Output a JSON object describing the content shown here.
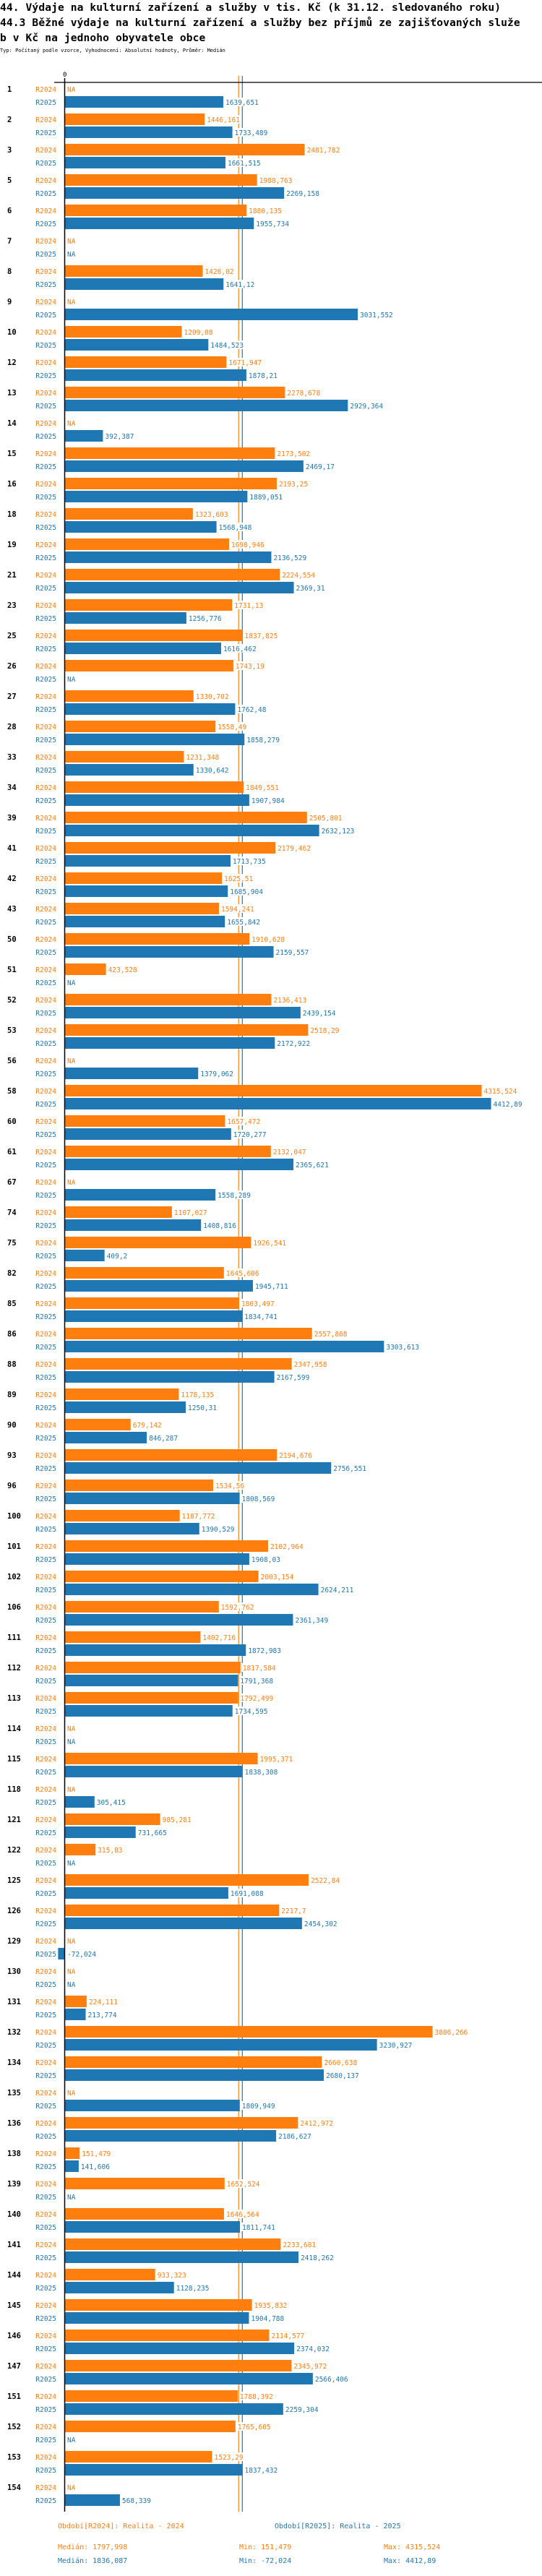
{
  "header": {
    "title_line1": "44. Výdaje na kulturní zařízení a služby v tis. Kč (k 31.12. sledovaného roku)",
    "title_line2": "44.3 Běžné výdaje na kulturní zařízení a služby bez příjmů ze zajišťovaných služe",
    "title_line3": "b v Kč na jednoho obyvatele obce",
    "subtitle": "Typ: Počítaný podle vzorce, Vyhodnocení: Absolutní hodnoty, Průměr: Medián"
  },
  "colors": {
    "R2024": "#ff7f0e",
    "R2025": "#1f77b4",
    "axis": "#000000"
  },
  "chart_data": {
    "type": "bar",
    "orientation": "horizontal",
    "title": "44.3 Běžné výdaje na kulturní zařízení a služby bez příjmů ze zajišťovaných služeb v Kč na jednoho obyvatele obce",
    "xlabel": "",
    "ylabel": "",
    "x_tick_labels": [
      "0"
    ],
    "xlim": [
      -100,
      4412.89
    ],
    "grid": false,
    "legend_position": "bottom",
    "na_label": "NA",
    "categories": [
      "1",
      "2",
      "3",
      "5",
      "6",
      "7",
      "8",
      "9",
      "10",
      "12",
      "13",
      "14",
      "15",
      "16",
      "18",
      "19",
      "21",
      "23",
      "25",
      "26",
      "27",
      "28",
      "33",
      "34",
      "39",
      "41",
      "42",
      "43",
      "50",
      "51",
      "52",
      "53",
      "56",
      "58",
      "60",
      "61",
      "67",
      "74",
      "75",
      "82",
      "85",
      "86",
      "88",
      "89",
      "90",
      "93",
      "96",
      "100",
      "101",
      "102",
      "106",
      "111",
      "112",
      "113",
      "114",
      "115",
      "118",
      "121",
      "122",
      "125",
      "126",
      "129",
      "130",
      "131",
      "132",
      "134",
      "135",
      "136",
      "138",
      "139",
      "140",
      "141",
      "144",
      "145",
      "146",
      "147",
      "151",
      "152",
      "153",
      "154"
    ],
    "series": [
      {
        "name": "R2024",
        "legend": "Období[R2024]: Realita - 2024",
        "values": [
          null,
          1446.161,
          2481.782,
          1988.763,
          1880.135,
          null,
          1426.02,
          null,
          1209.08,
          1671.947,
          2278.678,
          null,
          2173.502,
          2193.25,
          1323.603,
          1698.946,
          2224.554,
          1731.13,
          1837.825,
          1743.19,
          1330.702,
          1558.49,
          1231.348,
          1849.551,
          2505.801,
          2179.462,
          1625.51,
          1594.241,
          1910.628,
          423.528,
          2136.413,
          2518.29,
          null,
          4315.524,
          1657.472,
          2132.047,
          null,
          1107.027,
          1926.541,
          1645.606,
          1803.497,
          2557.808,
          2347.958,
          1178.135,
          679.142,
          2194.676,
          1534.56,
          1187.772,
          2102.964,
          2003.154,
          1592.762,
          1402.716,
          1817.584,
          1792.499,
          null,
          1995.371,
          null,
          985.281,
          315.83,
          2522.84,
          2217.7,
          null,
          null,
          224.111,
          3806.266,
          2660.638,
          null,
          2412.972,
          151.479,
          1652.524,
          1646.564,
          2233.681,
          933.323,
          1935.832,
          2114.577,
          2345.972,
          1788.392,
          1765.605,
          1523.29,
          null
        ],
        "labels": [
          "NA",
          "1446,161",
          "2481,782",
          "1988,763",
          "1880,135",
          "NA",
          "1426,02",
          "NA",
          "1209,08",
          "1671,947",
          "2278,678",
          "NA",
          "2173,502",
          "2193,25",
          "1323,603",
          "1698,946",
          "2224,554",
          "1731,13",
          "1837,825",
          "1743,19",
          "1330,702",
          "1558,49",
          "1231,348",
          "1849,551",
          "2505,801",
          "2179,462",
          "1625,51",
          "1594,241",
          "1910,628",
          "423,528",
          "2136,413",
          "2518,29",
          "NA",
          "4315,524",
          "1657,472",
          "2132,047",
          "NA",
          "1107,027",
          "1926,541",
          "1645,606",
          "1803,497",
          "2557,808",
          "2347,958",
          "1178,135",
          "679,142",
          "2194,676",
          "1534,56",
          "1187,772",
          "2102,964",
          "2003,154",
          "1592,762",
          "1402,716",
          "1817,584",
          "1792,499",
          "NA",
          "1995,371",
          "NA",
          "985,281",
          "315,83",
          "2522,84",
          "2217,7",
          "NA",
          "NA",
          "224,111",
          "3806,266",
          "2660,638",
          "NA",
          "2412,972",
          "151,479",
          "1652,524",
          "1646,564",
          "2233,681",
          "933,323",
          "1935,832",
          "2114,577",
          "2345,972",
          "1788,392",
          "1765,605",
          "1523,29",
          "NA"
        ],
        "median": 1797.998,
        "min": 151.479,
        "max": 4315.524,
        "median_label": "Medián: 1797,998",
        "min_label": "Min: 151,479",
        "max_label": "Max: 4315,524"
      },
      {
        "name": "R2025",
        "legend": "Období[R2025]: Realita - 2025",
        "values": [
          1639.651,
          1733.489,
          1661.515,
          2269.158,
          1955.734,
          null,
          1641.12,
          3031.552,
          1484.523,
          1878.21,
          2929.364,
          392.387,
          2469.17,
          1889.051,
          1568.948,
          2136.529,
          2369.31,
          1256.776,
          1616.462,
          null,
          1762.48,
          1858.279,
          1330.642,
          1907.984,
          2632.123,
          1713.735,
          1685.904,
          1655.842,
          2159.557,
          null,
          2439.154,
          2172.922,
          1379.062,
          4412.89,
          1720.277,
          2365.621,
          1558.289,
          1408.816,
          409.2,
          1945.711,
          1834.741,
          3303.613,
          2167.599,
          1250.31,
          846.287,
          2756.551,
          1808.569,
          1390.529,
          1908.03,
          2624.211,
          2361.349,
          1872.983,
          1791.368,
          1734.595,
          null,
          1838.308,
          305.415,
          731.665,
          null,
          1691.088,
          2454.302,
          -72.024,
          null,
          213.774,
          3230.927,
          2680.137,
          1809.949,
          2186.627,
          141.606,
          null,
          1811.741,
          2418.262,
          1128.235,
          1904.788,
          2374.032,
          2566.406,
          2259.304,
          null,
          1837.432,
          568.339
        ],
        "labels": [
          "1639,651",
          "1733,489",
          "1661,515",
          "2269,158",
          "1955,734",
          "NA",
          "1641,12",
          "3031,552",
          "1484,523",
          "1878,21",
          "2929,364",
          "392,387",
          "2469,17",
          "1889,051",
          "1568,948",
          "2136,529",
          "2369,31",
          "1256,776",
          "1616,462",
          "NA",
          "1762,48",
          "1858,279",
          "1330,642",
          "1907,984",
          "2632,123",
          "1713,735",
          "1685,904",
          "1655,842",
          "2159,557",
          "NA",
          "2439,154",
          "2172,922",
          "1379,062",
          "4412,89",
          "1720,277",
          "2365,621",
          "1558,289",
          "1408,816",
          "409,2",
          "1945,711",
          "1834,741",
          "3303,613",
          "2167,599",
          "1250,31",
          "846,287",
          "2756,551",
          "1808,569",
          "1390,529",
          "1908,03",
          "2624,211",
          "2361,349",
          "1872,983",
          "1791,368",
          "1734,595",
          "NA",
          "1838,308",
          "305,415",
          "731,665",
          "NA",
          "1691,088",
          "2454,302",
          "-72,024",
          "NA",
          "213,774",
          "3230,927",
          "2680,137",
          "1809,949",
          "2186,627",
          "141,606",
          "NA",
          "1811,741",
          "2418,262",
          "1128,235",
          "1904,788",
          "2374,032",
          "2566,406",
          "2259,304",
          "NA",
          "1837,432",
          "568,339"
        ],
        "median": 1836.087,
        "min": -72.024,
        "max": 4412.89,
        "median_label": "Medián: 1836,087",
        "min_label": "Min: -72,024",
        "max_label": "Max: 4412,89"
      }
    ]
  }
}
